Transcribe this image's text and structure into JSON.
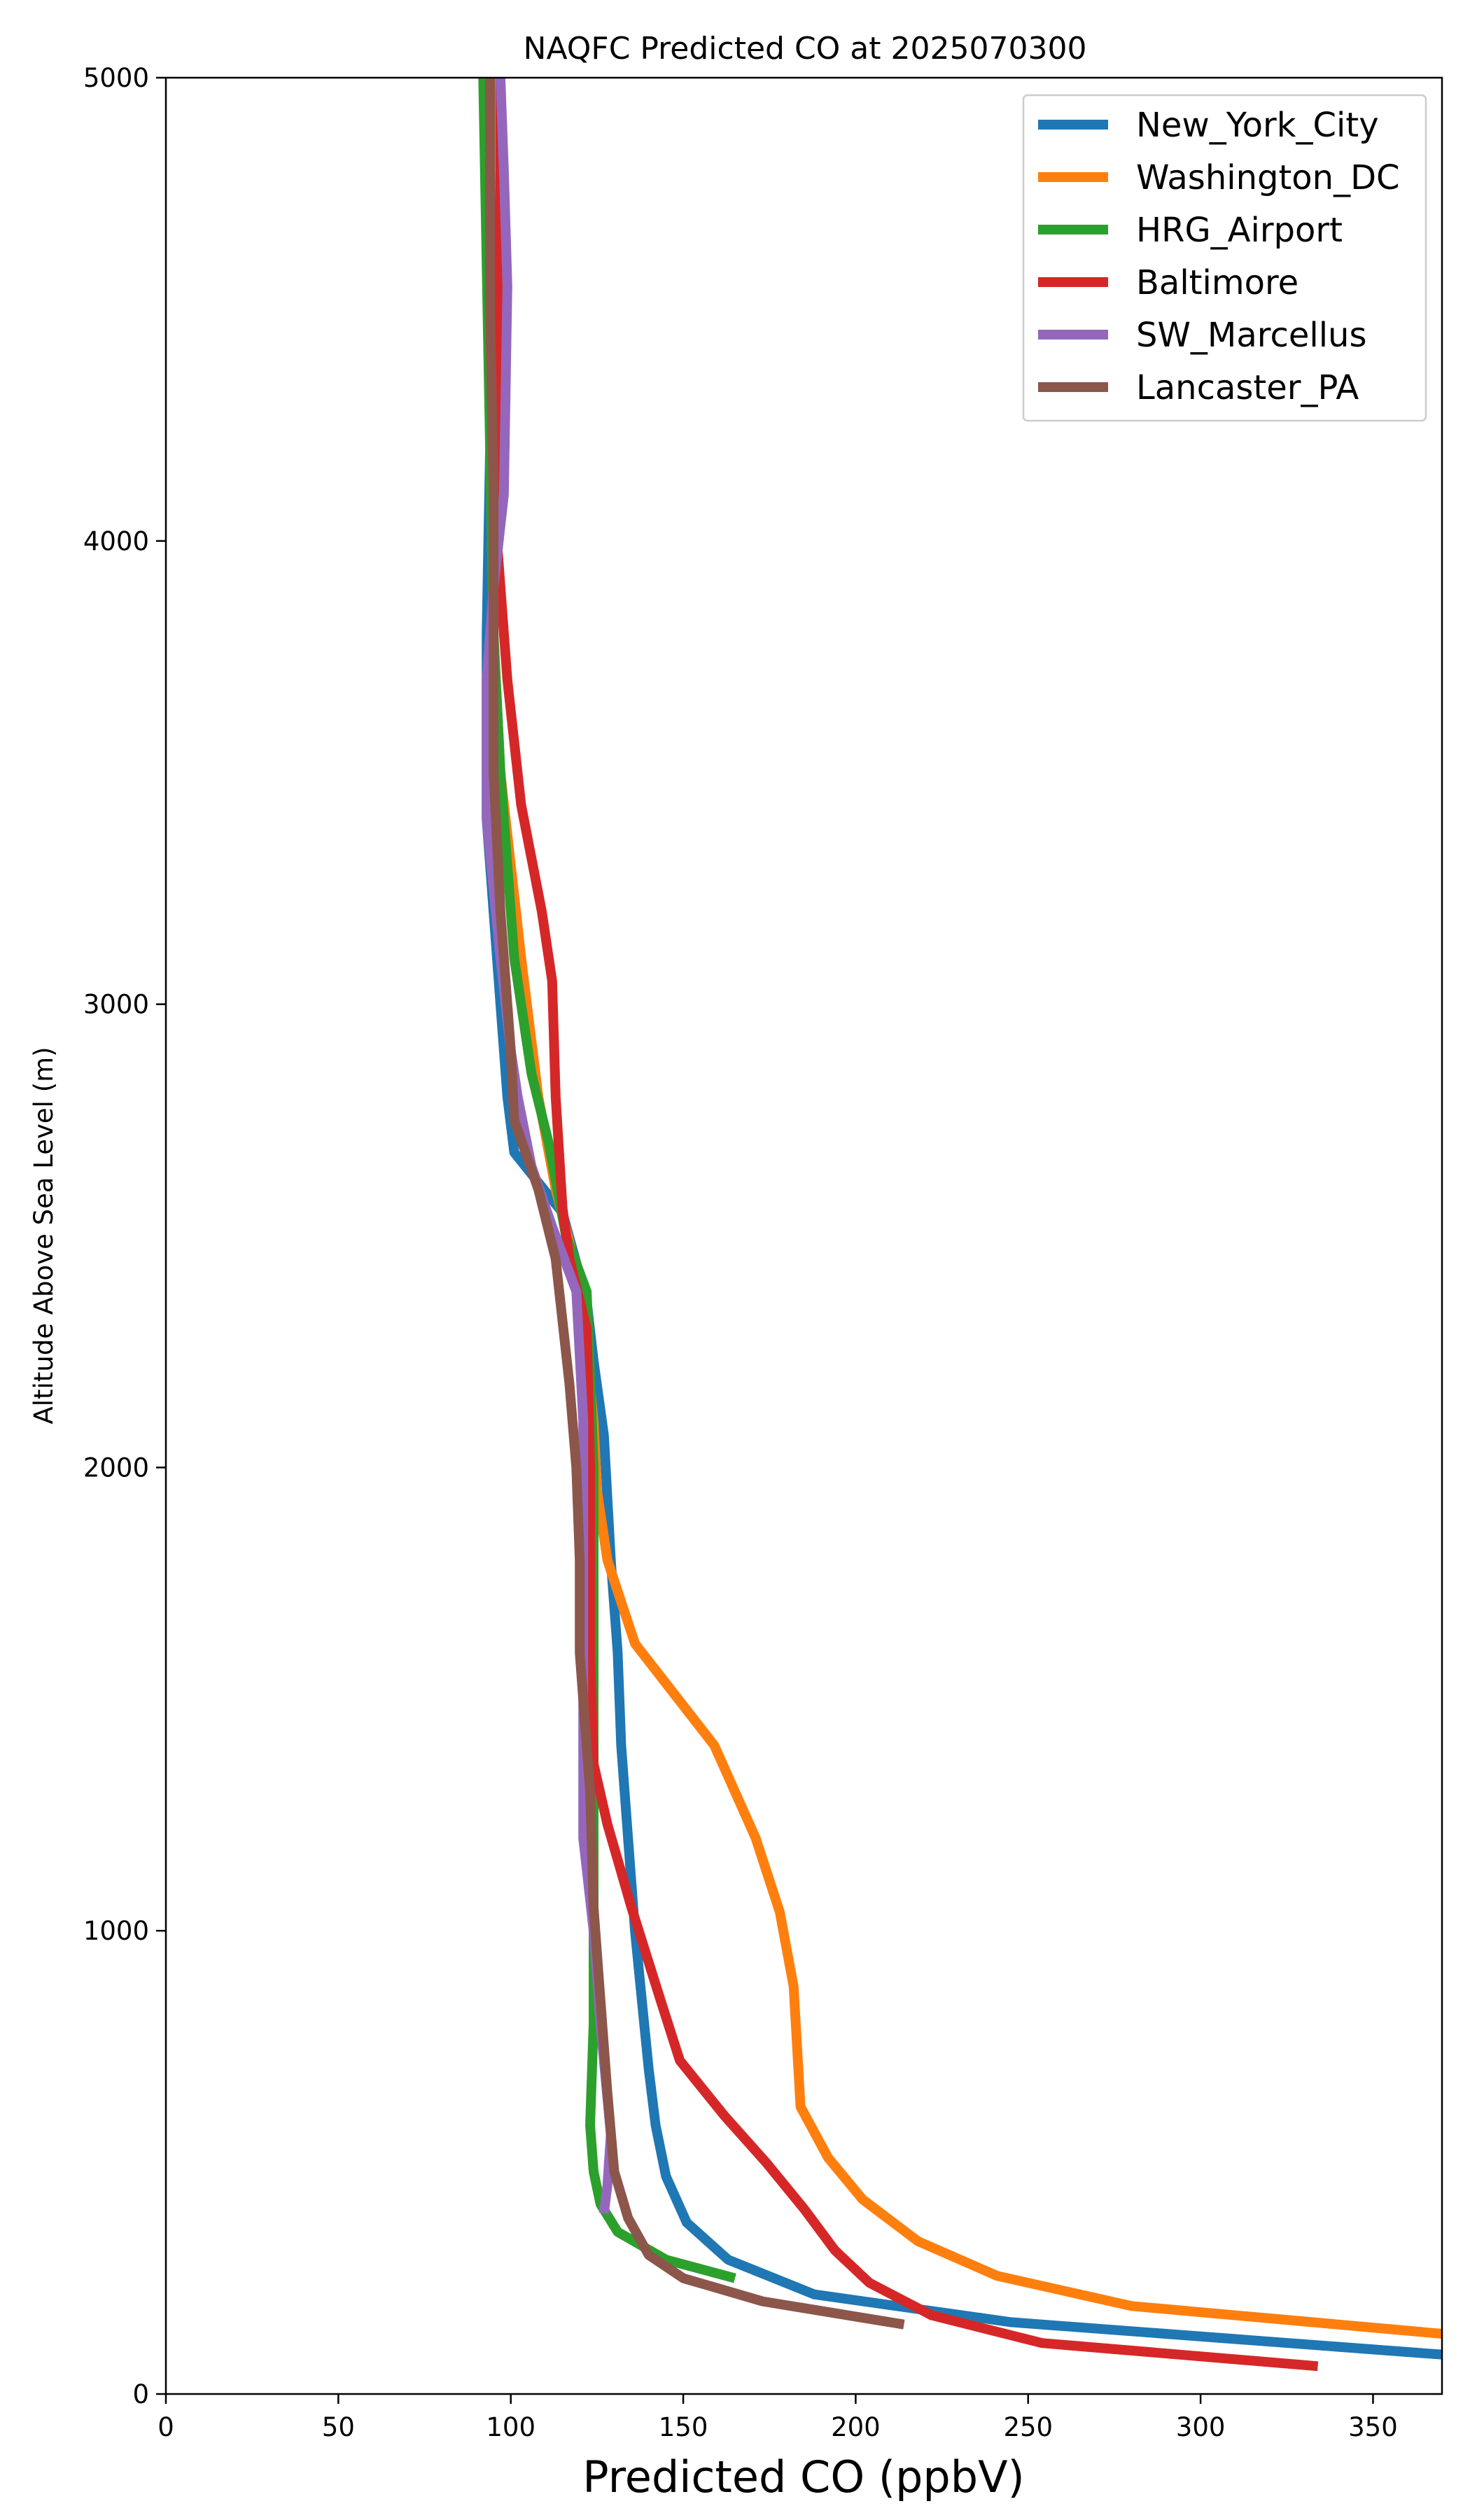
{
  "chart_data": {
    "type": "line",
    "title": "NAQFC Predicted CO at 2025070300",
    "xlabel": "Predicted CO (ppbV)",
    "ylabel": "Altitude Above Sea Level (m)",
    "xlim": [
      0,
      370
    ],
    "ylim": [
      0,
      5000
    ],
    "xticks": [
      "0",
      "50",
      "100",
      "150",
      "200",
      "250",
      "300",
      "350"
    ],
    "yticks": [
      "0",
      "1000",
      "2000",
      "3000",
      "4000",
      "5000"
    ],
    "grid": false,
    "legend_position": "top-right",
    "series": [
      {
        "name": "New_York_City",
        "color": "#1f77b4",
        "points": [
          [
            370,
            85
          ],
          [
            245,
            155
          ],
          [
            188,
            215
          ],
          [
            163,
            290
          ],
          [
            151,
            370
          ],
          [
            145,
            470
          ],
          [
            142,
            580
          ],
          [
            140,
            700
          ],
          [
            138,
            850
          ],
          [
            136,
            1000
          ],
          [
            134,
            1200
          ],
          [
            132,
            1400
          ],
          [
            131,
            1600
          ],
          [
            129,
            1800
          ],
          [
            127,
            2070
          ],
          [
            124,
            2230
          ],
          [
            122,
            2360
          ],
          [
            115,
            2550
          ],
          [
            101,
            2680
          ],
          [
            99,
            2800
          ],
          [
            97,
            3000
          ],
          [
            93,
            3400
          ],
          [
            93,
            3800
          ],
          [
            94,
            4200
          ],
          [
            94,
            4600
          ],
          [
            95,
            5000
          ]
        ]
      },
      {
        "name": "Washington_DC",
        "color": "#ff7f0e",
        "points": [
          [
            370,
            130
          ],
          [
            280,
            190
          ],
          [
            241,
            255
          ],
          [
            218,
            330
          ],
          [
            202,
            420
          ],
          [
            192,
            510
          ],
          [
            184,
            620
          ],
          [
            182,
            880
          ],
          [
            178,
            1040
          ],
          [
            171,
            1200
          ],
          [
            159,
            1400
          ],
          [
            136,
            1620
          ],
          [
            128,
            1800
          ],
          [
            125,
            1950
          ],
          [
            124,
            2100
          ],
          [
            120,
            2400
          ],
          [
            113,
            2600
          ],
          [
            108,
            2800
          ],
          [
            103,
            3100
          ],
          [
            97,
            3500
          ],
          [
            95,
            3800
          ],
          [
            94,
            4200
          ],
          [
            95,
            4600
          ],
          [
            96,
            5000
          ]
        ]
      },
      {
        "name": "HRG_Airport",
        "color": "#2ca02c",
        "points": [
          [
            165,
            250
          ],
          [
            145,
            290
          ],
          [
            131,
            350
          ],
          [
            126,
            410
          ],
          [
            124,
            480
          ],
          [
            123,
            580
          ],
          [
            124,
            800
          ],
          [
            124,
            1100
          ],
          [
            124,
            1400
          ],
          [
            124,
            1700
          ],
          [
            124,
            2000
          ],
          [
            123,
            2200
          ],
          [
            122,
            2380
          ],
          [
            116,
            2500
          ],
          [
            111,
            2700
          ],
          [
            106,
            2850
          ],
          [
            101,
            3100
          ],
          [
            97,
            3500
          ],
          [
            95,
            3800
          ],
          [
            94,
            4200
          ],
          [
            93,
            4600
          ],
          [
            92,
            5000
          ]
        ]
      },
      {
        "name": "Baltimore",
        "color": "#d62728",
        "points": [
          [
            334,
            60
          ],
          [
            254,
            110
          ],
          [
            222,
            170
          ],
          [
            204,
            240
          ],
          [
            194,
            310
          ],
          [
            185,
            400
          ],
          [
            174,
            500
          ],
          [
            162,
            600
          ],
          [
            149,
            720
          ],
          [
            143,
            860
          ],
          [
            135,
            1050
          ],
          [
            128,
            1230
          ],
          [
            124,
            1360
          ],
          [
            123,
            1600
          ],
          [
            123,
            2000
          ],
          [
            122,
            2300
          ],
          [
            117,
            2450
          ],
          [
            115,
            2560
          ],
          [
            113,
            2800
          ],
          [
            112,
            3050
          ],
          [
            109,
            3200
          ],
          [
            103,
            3430
          ],
          [
            99,
            3700
          ],
          [
            96,
            4000
          ],
          [
            96,
            4400
          ],
          [
            97,
            4800
          ],
          [
            97,
            5000
          ]
        ]
      },
      {
        "name": "SW_Marcellus",
        "color": "#9467bd",
        "points": [
          [
            127,
            390
          ],
          [
            128,
            450
          ],
          [
            129,
            560
          ],
          [
            126,
            800
          ],
          [
            124,
            1000
          ],
          [
            121,
            1200
          ],
          [
            121,
            1500
          ],
          [
            121,
            1800
          ],
          [
            121,
            2100
          ],
          [
            119,
            2380
          ],
          [
            112,
            2520
          ],
          [
            106,
            2650
          ],
          [
            102,
            2800
          ],
          [
            100,
            2900
          ],
          [
            97,
            3100
          ],
          [
            93,
            3400
          ],
          [
            93,
            3700
          ],
          [
            95,
            3900
          ],
          [
            98,
            4100
          ],
          [
            99,
            4550
          ],
          [
            98,
            4800
          ],
          [
            97,
            5000
          ]
        ]
      },
      {
        "name": "Lancaster_PA",
        "color": "#8c564b",
        "points": [
          [
            214,
            150
          ],
          [
            173,
            200
          ],
          [
            150,
            250
          ],
          [
            140,
            300
          ],
          [
            134,
            380
          ],
          [
            130,
            480
          ],
          [
            128,
            650
          ],
          [
            126,
            850
          ],
          [
            124,
            1050
          ],
          [
            123,
            1300
          ],
          [
            120,
            1600
          ],
          [
            120,
            1800
          ],
          [
            119,
            2000
          ],
          [
            117,
            2180
          ],
          [
            113,
            2450
          ],
          [
            108,
            2600
          ],
          [
            101,
            2750
          ],
          [
            100,
            2900
          ],
          [
            97,
            3200
          ],
          [
            95,
            3500
          ],
          [
            95,
            3800
          ],
          [
            95,
            4100
          ],
          [
            94,
            4500
          ],
          [
            94,
            5000
          ]
        ]
      }
    ]
  }
}
